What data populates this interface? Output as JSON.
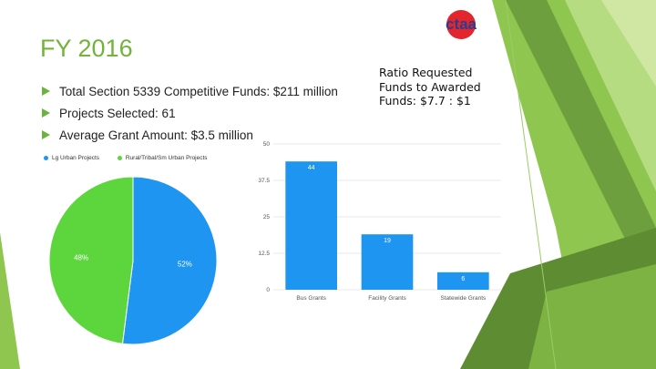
{
  "slide": {
    "title": "FY 2016",
    "bullets": [
      "Total Section 5339 Competitive Funds: $211 million",
      "Projects Selected: 61",
      "Average Grant Amount: $3.5 million"
    ],
    "ratio_lines": [
      "Ratio Requested",
      "Funds to Awarded",
      "Funds: $7.7 : $1"
    ],
    "logo_text": "ctaa"
  },
  "colors": {
    "accent_green": "#73b33b",
    "blue": "#2196f3",
    "green": "#5cd63c",
    "logo_blue": "#2b3d8e",
    "logo_red": "#e3262e"
  },
  "chart_data": [
    {
      "type": "pie",
      "legend": [
        "Lg Urban Projects",
        "Rural/Tribal/Sm Urban Projects"
      ],
      "slices": [
        {
          "name": "Lg Urban Projects",
          "value": 52,
          "label": "52%",
          "color": "#1e95f0"
        },
        {
          "name": "Rural/Tribal/Sm Urban Projects",
          "value": 48,
          "label": "48%",
          "color": "#5cd63c"
        }
      ]
    },
    {
      "type": "bar",
      "categories": [
        "Bus Grants",
        "Facility Grants",
        "Statewide Grants"
      ],
      "values": [
        44,
        19,
        6
      ],
      "ylim": [
        0,
        50
      ],
      "yticks": [
        "0",
        "12.5",
        "25",
        "37.5",
        "50"
      ],
      "ytick_values": [
        0,
        12.5,
        25,
        37.5,
        50
      ],
      "grid": true,
      "color": "#1e95f0"
    }
  ]
}
